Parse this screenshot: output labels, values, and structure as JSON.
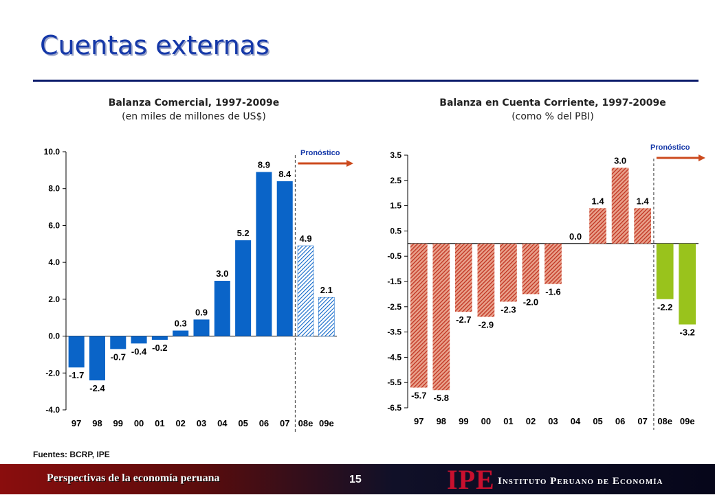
{
  "slide": {
    "title": "Cuentas externas",
    "source": "Fuentes: BCRP, IPE",
    "footer_left": "Perspectivas de la economía peruana",
    "page_number": "15",
    "logo": "IPE",
    "institute": "Instituto Peruano de Economía"
  },
  "colors": {
    "title": "#1538a8",
    "bar_blue": "#0a64c8",
    "bar_red": "#c0311f",
    "bar_green": "#99c31c",
    "arrow": "#cc4a1e"
  },
  "charts": {
    "left": {
      "title": "Balanza Comercial, 1997-2009e",
      "subtitle": "(en miles de millones de US$)",
      "forecast_label": "Pronóstico"
    },
    "right": {
      "title": "Balanza en Cuenta Corriente, 1997-2009e",
      "subtitle": "(como % del PBI)",
      "forecast_label": "Pronóstico"
    }
  },
  "chart_data": [
    {
      "type": "bar",
      "title": "Balanza Comercial, 1997-2009e",
      "subtitle": "(en miles de millones de US$)",
      "categories": [
        "97",
        "98",
        "99",
        "00",
        "01",
        "02",
        "03",
        "04",
        "05",
        "06",
        "07",
        "08e",
        "09e"
      ],
      "values": [
        -1.7,
        -2.4,
        -0.7,
        -0.4,
        -0.2,
        0.3,
        0.9,
        3.0,
        5.2,
        8.9,
        8.4,
        4.9,
        2.1
      ],
      "labels": [
        "-1.7",
        "-2.4",
        "-0.7",
        "-0.4",
        "-0.2",
        "0.3",
        "0.9",
        "3.0",
        "5.2",
        "8.9",
        "8.4",
        "4.9",
        "2.1"
      ],
      "forecast_from": "08e",
      "ylim": [
        -4.0,
        10.0
      ],
      "yticks": [
        -4.0,
        -2.0,
        0.0,
        2.0,
        4.0,
        6.0,
        8.0,
        10.0
      ],
      "ytick_labels": [
        "-4.0",
        "-2.0",
        "0.0",
        "2.0",
        "4.0",
        "6.0",
        "8.0",
        "10.0"
      ],
      "grid": false
    },
    {
      "type": "bar",
      "title": "Balanza en Cuenta Corriente, 1997-2009e",
      "subtitle": "(como % del PBI)",
      "categories": [
        "97",
        "98",
        "99",
        "00",
        "01",
        "02",
        "03",
        "04",
        "05",
        "06",
        "07",
        "08e",
        "09e"
      ],
      "values": [
        -5.7,
        -5.8,
        -2.7,
        -2.9,
        -2.3,
        -2.0,
        -1.6,
        0.0,
        1.4,
        3.0,
        1.4,
        -2.2,
        -3.2
      ],
      "labels": [
        "-5.7",
        "-5.8",
        "-2.7",
        "-2.9",
        "-2.3",
        "-2.0",
        "-1.6",
        "0.0",
        "1.4",
        "3.0",
        "1.4",
        "-2.2",
        "-3.2"
      ],
      "forecast_from": "08e",
      "ylim": [
        -6.5,
        3.5
      ],
      "yticks": [
        -6.5,
        -5.5,
        -4.5,
        -3.5,
        -2.5,
        -1.5,
        -0.5,
        0.5,
        1.5,
        2.5,
        3.5
      ],
      "ytick_labels": [
        "-6.5",
        "-5.5",
        "-4.5",
        "-3.5",
        "-2.5",
        "-1.5",
        "-0.5",
        "0.5",
        "1.5",
        "2.5",
        "3.5"
      ],
      "grid": false
    }
  ]
}
